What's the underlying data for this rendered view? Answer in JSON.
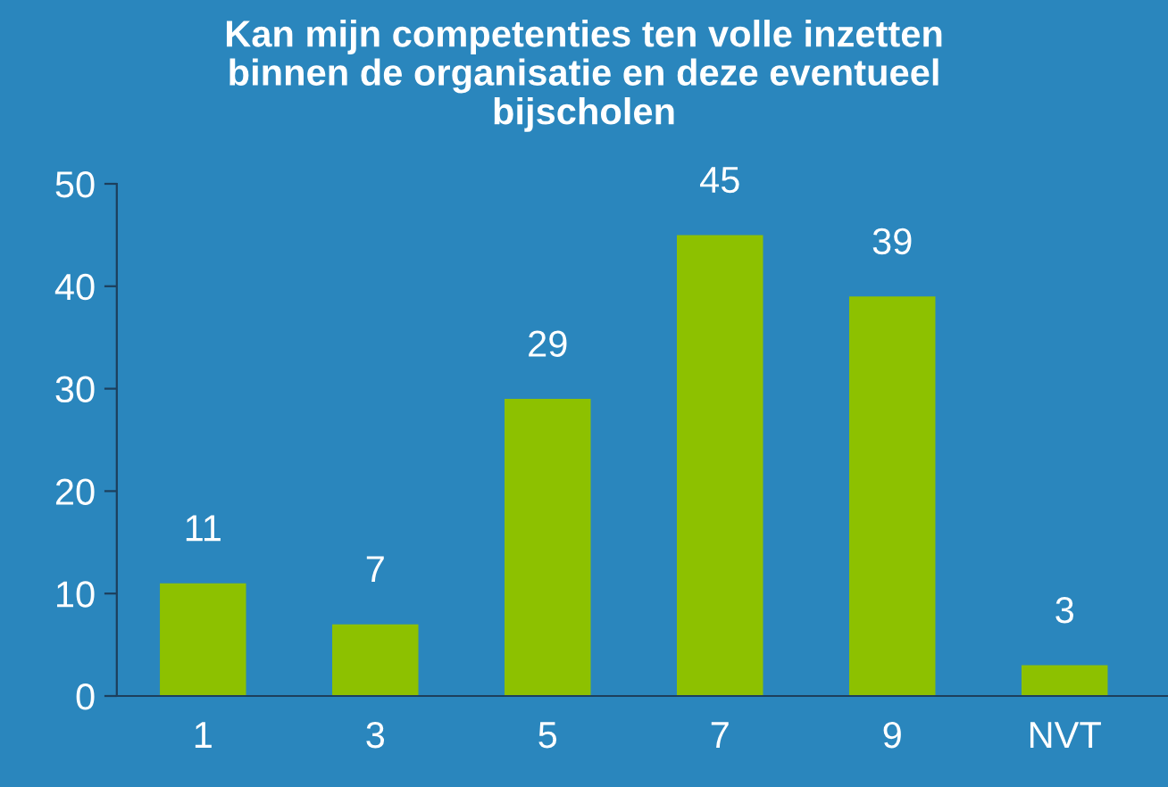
{
  "chart_data": {
    "type": "bar",
    "title": "Kan mijn competenties ten volle inzetten\nbinnen de organisatie en deze eventueel\nbijscholen",
    "categories": [
      "1",
      "3",
      "5",
      "7",
      "9",
      "NVT"
    ],
    "values": [
      11,
      7,
      29,
      45,
      39,
      3
    ],
    "color": "#8dc100",
    "ylim": [
      0,
      50
    ],
    "yticks": [
      0,
      10,
      20,
      30,
      40,
      50
    ],
    "grid": false,
    "data_labels": true
  }
}
